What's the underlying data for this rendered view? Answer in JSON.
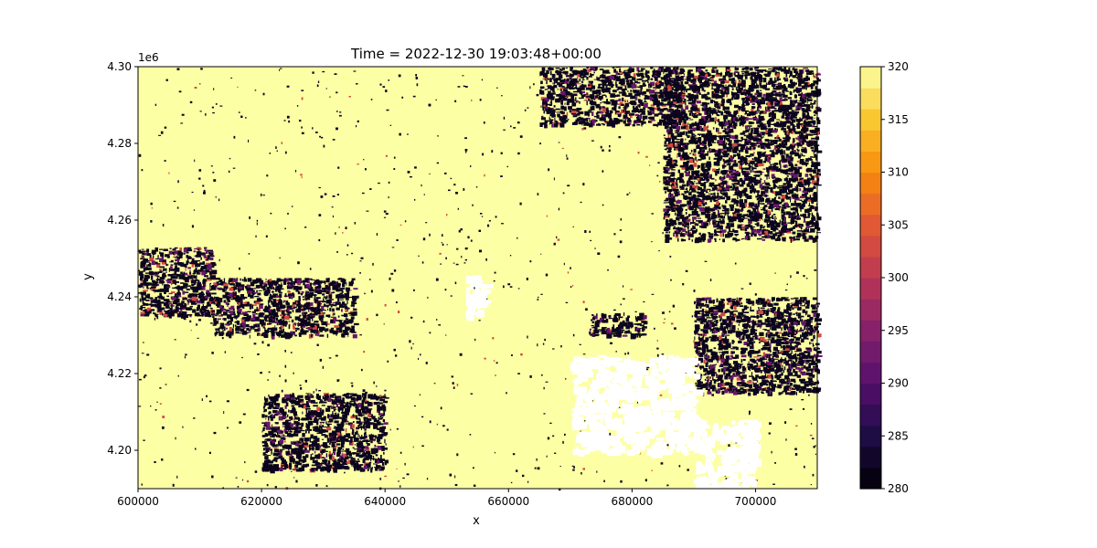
{
  "chart_data": {
    "type": "heatmap",
    "title": "Time = 2022-12-30 19:03:48+00:00",
    "xlabel": "x",
    "ylabel": "y",
    "xlim": [
      600000,
      710000
    ],
    "ylim": [
      4190000,
      4300000
    ],
    "x_ticks": [
      600000,
      620000,
      640000,
      660000,
      680000,
      700000
    ],
    "x_tick_labels": [
      "600000",
      "620000",
      "640000",
      "660000",
      "680000",
      "700000"
    ],
    "y_ticks": [
      4200000,
      4220000,
      4240000,
      4260000,
      4280000,
      4300000
    ],
    "y_tick_labels": [
      "4.20",
      "4.22",
      "4.24",
      "4.26",
      "4.28",
      "4.30"
    ],
    "y_offset_label": "1e6",
    "colorbar": {
      "colormap": "inferno",
      "range": [
        280,
        320
      ],
      "ticks": [
        280,
        285,
        290,
        295,
        300,
        305,
        310,
        315,
        320
      ],
      "tick_labels": [
        "280",
        "285",
        "290",
        "295",
        "300",
        "305",
        "310",
        "315",
        "320"
      ],
      "levels": 20
    },
    "summary": {
      "dominant_value": 320,
      "secondary_value": 282,
      "missing_value_color": "#ffffff"
    },
    "missing_regions": [
      {
        "x_range": [
          670000,
          690000
        ],
        "y_range": [
          4200000,
          4225000
        ]
      },
      {
        "x_range": [
          690000,
          700000
        ],
        "y_range": [
          4190000,
          4208000
        ]
      },
      {
        "x_range": [
          653000,
          656000
        ],
        "y_range": [
          4235000,
          4246000
        ]
      }
    ],
    "cold_regions": [
      {
        "x_range": [
          685000,
          710000
        ],
        "y_range": [
          4255000,
          4300000
        ]
      },
      {
        "x_range": [
          665000,
          688000
        ],
        "y_range": [
          4285000,
          4300000
        ]
      },
      {
        "x_range": [
          600000,
          612000
        ],
        "y_range": [
          4235000,
          4253000
        ]
      },
      {
        "x_range": [
          612000,
          635000
        ],
        "y_range": [
          4230000,
          4245000
        ]
      },
      {
        "x_range": [
          673000,
          682000
        ],
        "y_range": [
          4230000,
          4236000
        ]
      },
      {
        "x_range": [
          690000,
          710000
        ],
        "y_range": [
          4215000,
          4240000
        ]
      },
      {
        "x_range": [
          620000,
          640000
        ],
        "y_range": [
          4195000,
          4215000
        ]
      }
    ]
  }
}
